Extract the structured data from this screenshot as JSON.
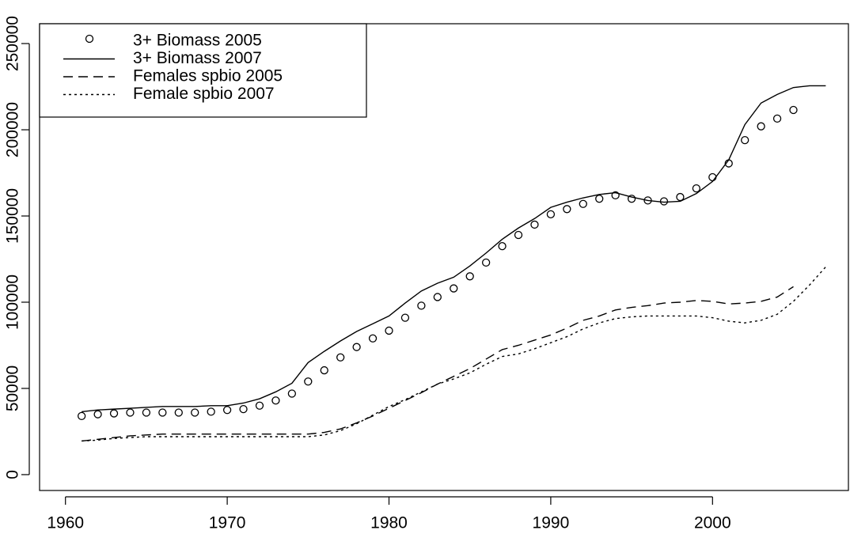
{
  "chart_data": {
    "type": "line",
    "x": [
      1961,
      1962,
      1963,
      1964,
      1965,
      1966,
      1967,
      1968,
      1969,
      1970,
      1971,
      1972,
      1973,
      1974,
      1975,
      1976,
      1977,
      1978,
      1979,
      1980,
      1981,
      1982,
      1983,
      1984,
      1985,
      1986,
      1987,
      1988,
      1989,
      1990,
      1991,
      1992,
      1993,
      1994,
      1995,
      1996,
      1997,
      1998,
      1999,
      2000,
      2001,
      2002,
      2003,
      2004,
      2005,
      2006,
      2007
    ],
    "series": [
      {
        "name": "3+ Biomass 2005",
        "color": "#000000",
        "linestyle": "none",
        "marker": "circle",
        "values": [
          34000,
          35000,
          35500,
          36000,
          36000,
          36000,
          36000,
          36000,
          36500,
          37500,
          38000,
          40000,
          43000,
          47000,
          54000,
          60500,
          68000,
          74000,
          79000,
          83500,
          91000,
          98000,
          103000,
          108000,
          115000,
          123000,
          132500,
          139000,
          145000,
          151000,
          154000,
          157000,
          160000,
          162000,
          160000,
          159000,
          158500,
          161000,
          166000,
          172500,
          180500,
          194000,
          202000,
          206500,
          211500,
          null,
          null
        ]
      },
      {
        "name": "3+ Biomass 2007",
        "color": "#000000",
        "linestyle": "solid",
        "values": [
          36500,
          37500,
          38000,
          38500,
          39000,
          39500,
          39500,
          39500,
          40000,
          40000,
          41500,
          44000,
          48000,
          53000,
          65000,
          71500,
          77500,
          83000,
          87500,
          92000,
          99500,
          106500,
          111000,
          114500,
          121000,
          128500,
          136500,
          143000,
          148500,
          155000,
          158000,
          160500,
          162500,
          163500,
          161000,
          159000,
          158000,
          158500,
          163000,
          170000,
          182500,
          203000,
          215500,
          220500,
          224500,
          225500,
          225500
        ]
      },
      {
        "name": "Females spbio 2005",
        "color": "#000000",
        "linestyle": "dashed",
        "values": [
          19500,
          20500,
          21500,
          22500,
          23000,
          23500,
          23500,
          23500,
          23500,
          23500,
          23500,
          23500,
          23500,
          23500,
          23500,
          24500,
          26500,
          30000,
          34000,
          38500,
          43000,
          47500,
          52500,
          57000,
          61500,
          67000,
          72500,
          75000,
          78000,
          81000,
          85000,
          89500,
          92000,
          95500,
          97000,
          98000,
          99500,
          100000,
          101000,
          100500,
          99000,
          99500,
          100500,
          103000,
          109000,
          null,
          null
        ]
      },
      {
        "name": "Female spbio 2007",
        "color": "#000000",
        "linestyle": "dotted",
        "values": [
          19500,
          20000,
          21000,
          21500,
          22000,
          22000,
          22000,
          22000,
          22000,
          22000,
          22000,
          22000,
          22000,
          22000,
          22000,
          23000,
          25500,
          29500,
          34500,
          39500,
          43500,
          48000,
          52500,
          55500,
          59000,
          64000,
          68500,
          70000,
          73000,
          76500,
          80000,
          84500,
          88000,
          90500,
          91500,
          92000,
          92000,
          92000,
          92000,
          91000,
          89000,
          88000,
          89500,
          93000,
          100500,
          110000,
          120500
        ]
      }
    ],
    "xlim": [
      1958.4,
      2008.4
    ],
    "ylim": [
      -9200,
      261500
    ],
    "xticks": [
      1960,
      1970,
      1980,
      1990,
      2000
    ],
    "yticks": [
      0,
      50000,
      100000,
      150000,
      200000,
      250000
    ],
    "legend": "top-left"
  }
}
